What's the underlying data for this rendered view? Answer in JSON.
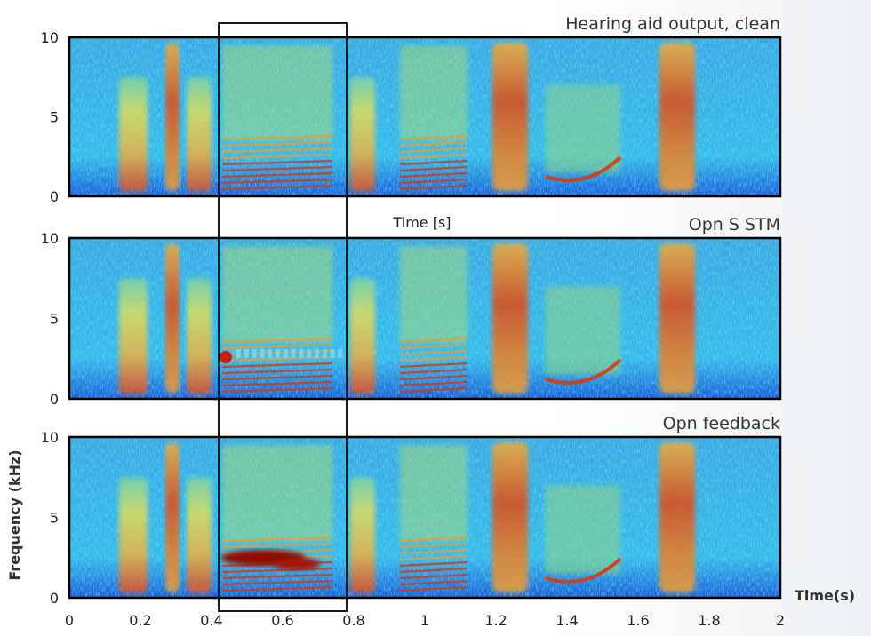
{
  "chart_data": {
    "type": "heatmap",
    "subtype": "spectrogram",
    "colormap": "jet",
    "panels": [
      {
        "title": "Hearing aid output, clean",
        "stray_label": "Time [s]"
      },
      {
        "title": "Opn S STM"
      },
      {
        "title": "Opn feedback"
      }
    ],
    "xlabel": "Time(s)",
    "ylabel": "Frequency (kHz)",
    "xlim": [
      0,
      2
    ],
    "ylim": [
      0,
      10
    ],
    "x_ticks": [
      "0",
      "0.2",
      "0.4",
      "0.6",
      "0.8",
      "1",
      "1.2",
      "1.4",
      "1.6",
      "1.8",
      "2"
    ],
    "y_ticks": [
      "0",
      "5",
      "10"
    ],
    "highlight_region": {
      "x_start": 0.42,
      "x_end": 0.78
    },
    "grid": false,
    "legend": "none"
  },
  "colors": {
    "low": "#1e5fd8",
    "mid": "#38c8e8",
    "high_mid": "#f3e650",
    "high": "#d22a0e"
  }
}
